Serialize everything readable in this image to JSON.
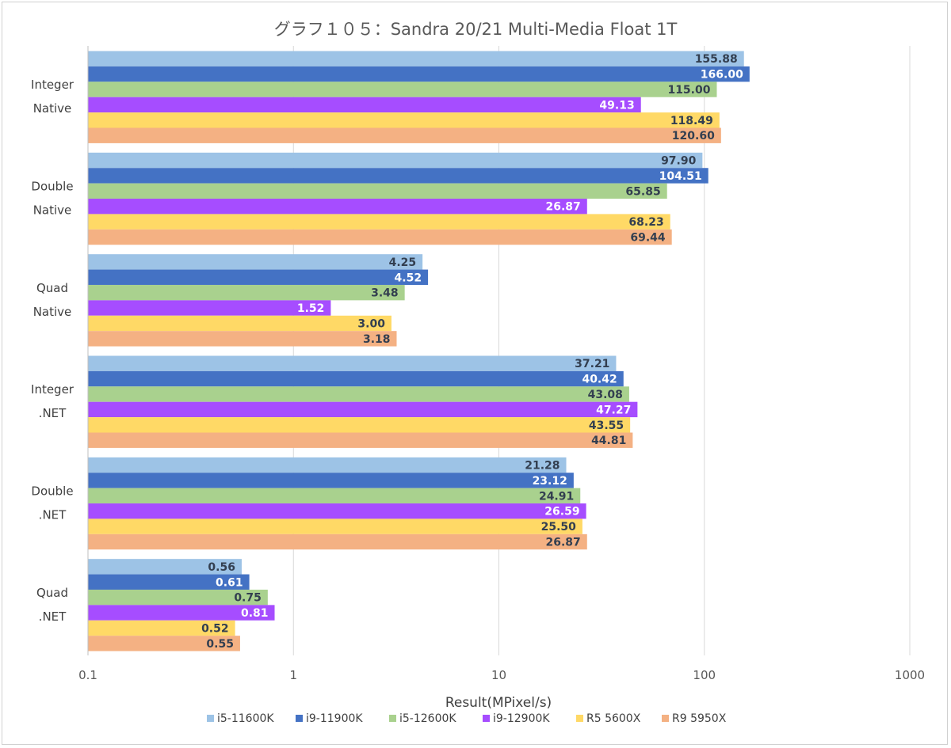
{
  "chart_data": {
    "type": "bar",
    "orientation": "horizontal",
    "title": "グラフ１０５：Sandra 20/21 Multi-Media Float 1T",
    "xlabel": "Result(MPixel/s)",
    "ylabel": "",
    "xscale": "log",
    "xlim": [
      0.1,
      1000
    ],
    "xticks": [
      "0.1",
      "1",
      "10",
      "100",
      "1000"
    ],
    "grid": "vertical",
    "legend_position": "bottom",
    "categories": [
      [
        "Integer",
        "Native"
      ],
      [
        "Double",
        "Native"
      ],
      [
        "Quad",
        "Native"
      ],
      [
        "Integer",
        ".NET"
      ],
      [
        "Double",
        ".NET"
      ],
      [
        "Quad",
        ".NET"
      ]
    ],
    "series": [
      {
        "name": "i5-11600K",
        "color": "#9dc3e6",
        "label_color": "#333f50",
        "values": [
          155.88,
          97.9,
          4.25,
          37.21,
          21.28,
          0.56
        ],
        "labels": [
          "155.88",
          "97.90",
          "4.25",
          "37.21",
          "21.28",
          "0.56"
        ]
      },
      {
        "name": "i9-11900K",
        "color": "#4472c4",
        "label_color": "#ffffff",
        "values": [
          166.0,
          104.51,
          4.52,
          40.42,
          23.12,
          0.61
        ],
        "labels": [
          "166.00",
          "104.51",
          "4.52",
          "40.42",
          "23.12",
          "0.61"
        ]
      },
      {
        "name": "i5-12600K",
        "color": "#a9d18e",
        "label_color": "#333f50",
        "values": [
          115.0,
          65.85,
          3.48,
          43.08,
          24.91,
          0.75
        ],
        "labels": [
          "115.00",
          "65.85",
          "3.48",
          "43.08",
          "24.91",
          "0.75"
        ]
      },
      {
        "name": "i9-12900K",
        "color": "#a64dff",
        "label_color": "#ffffff",
        "values": [
          49.13,
          26.87,
          1.52,
          47.27,
          26.59,
          0.81
        ],
        "labels": [
          "49.13",
          "26.87",
          "1.52",
          "47.27",
          "26.59",
          "0.81"
        ]
      },
      {
        "name": "R5 5600X",
        "color": "#ffd966",
        "label_color": "#333f50",
        "values": [
          118.49,
          68.23,
          3.0,
          43.55,
          25.5,
          0.52
        ],
        "labels": [
          "118.49",
          "68.23",
          "3.00",
          "43.55",
          "25.50",
          "0.52"
        ]
      },
      {
        "name": "R9 5950X",
        "color": "#f4b183",
        "label_color": "#333f50",
        "values": [
          120.6,
          69.44,
          3.18,
          44.81,
          26.87,
          0.55
        ],
        "labels": [
          "120.60",
          "69.44",
          "3.18",
          "44.81",
          "26.87",
          "0.55"
        ]
      }
    ]
  }
}
